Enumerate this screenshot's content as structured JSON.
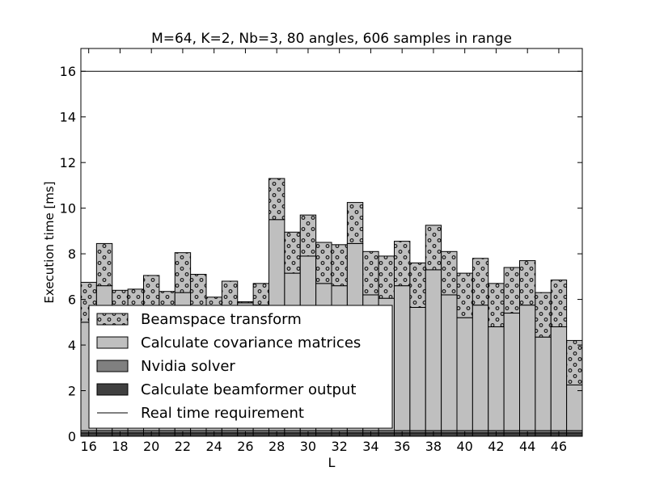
{
  "chart_data": {
    "type": "bar",
    "stacked": true,
    "title": "M=64, K=2, Nb=3, 80 angles, 606 samples in range",
    "xlabel": "L",
    "ylabel": "Execution time [ms]",
    "xlim": [
      15.5,
      47.5
    ],
    "ylim": [
      0,
      17
    ],
    "x_ticks": [
      16,
      18,
      20,
      22,
      24,
      26,
      28,
      30,
      32,
      34,
      36,
      38,
      40,
      42,
      44,
      46
    ],
    "y_ticks": [
      0,
      2,
      4,
      6,
      8,
      10,
      12,
      14,
      16
    ],
    "grid": false,
    "legend_position": "lower-left",
    "categories": [
      16,
      17,
      18,
      19,
      20,
      21,
      22,
      23,
      24,
      25,
      26,
      27,
      28,
      29,
      30,
      31,
      32,
      33,
      34,
      35,
      36,
      37,
      38,
      39,
      40,
      41,
      42,
      43,
      44,
      45,
      46,
      47
    ],
    "series": [
      {
        "name": "Calculate beamformer output",
        "color": "#404040",
        "hatch": "none",
        "values": [
          0.15,
          0.15,
          0.15,
          0.15,
          0.15,
          0.15,
          0.15,
          0.15,
          0.15,
          0.15,
          0.15,
          0.15,
          0.15,
          0.15,
          0.15,
          0.15,
          0.15,
          0.15,
          0.15,
          0.15,
          0.15,
          0.15,
          0.15,
          0.15,
          0.15,
          0.15,
          0.15,
          0.15,
          0.15,
          0.15,
          0.15,
          0.15
        ]
      },
      {
        "name": "Nvidia solver",
        "color": "#808080",
        "hatch": "none",
        "values": [
          0.1,
          0.1,
          0.1,
          0.1,
          0.1,
          0.1,
          0.1,
          0.1,
          0.1,
          0.1,
          0.1,
          0.1,
          0.1,
          0.1,
          0.1,
          0.1,
          0.1,
          0.1,
          0.1,
          0.1,
          0.1,
          0.1,
          0.1,
          0.1,
          0.1,
          0.1,
          0.1,
          0.1,
          0.1,
          0.1,
          0.1,
          0.1
        ]
      },
      {
        "name": "Calculate covariance matrices",
        "color": "#bfbfbf",
        "hatch": "none",
        "values": [
          4.75,
          6.35,
          5.25,
          5.25,
          5.15,
          5.15,
          6.05,
          4.85,
          4.85,
          5.15,
          5.6,
          5.5,
          9.25,
          6.9,
          7.65,
          6.45,
          6.35,
          8.2,
          5.95,
          5.8,
          6.35,
          5.4,
          7.05,
          5.95,
          4.95,
          5.5,
          4.55,
          5.15,
          5.5,
          4.1,
          4.55,
          2.0
        ]
      },
      {
        "name": "Beamspace transform",
        "color": "#bfbfbf",
        "hatch": "circles",
        "values": [
          1.75,
          1.85,
          0.9,
          0.95,
          1.65,
          0.95,
          1.75,
          2.0,
          1.0,
          1.4,
          0.05,
          0.95,
          1.8,
          1.8,
          1.8,
          1.8,
          1.8,
          1.8,
          1.9,
          1.85,
          1.95,
          1.95,
          1.95,
          1.9,
          1.95,
          2.05,
          1.9,
          2.0,
          1.95,
          1.95,
          2.05,
          1.95
        ]
      }
    ],
    "reference_lines": [
      {
        "name": "Real time requirement",
        "y": 16,
        "color": "#000000"
      }
    ]
  },
  "legend": {
    "items": [
      {
        "label": "Beamspace transform",
        "kind": "hatched",
        "color": "#bfbfbf"
      },
      {
        "label": "Calculate covariance matrices",
        "kind": "box",
        "color": "#bfbfbf"
      },
      {
        "label": "Nvidia solver",
        "kind": "box",
        "color": "#808080"
      },
      {
        "label": "Calculate beamformer output",
        "kind": "box",
        "color": "#404040"
      },
      {
        "label": "Real time requirement",
        "kind": "line",
        "color": "#000000"
      }
    ]
  }
}
